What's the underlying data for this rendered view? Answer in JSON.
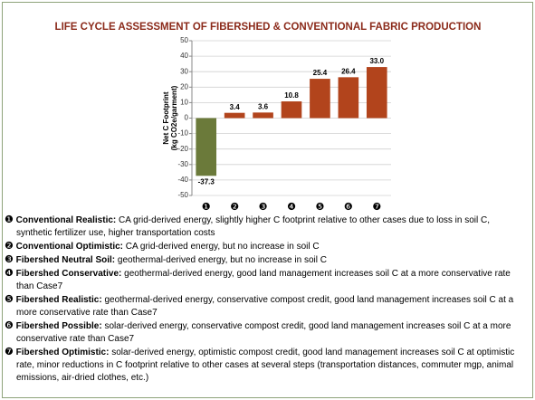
{
  "chart_data": {
    "type": "bar",
    "title": "LIFE CYCLE ASSESSMENT OF FIBERSHED & CONVENTIONAL FABRIC PRODUCTION",
    "y_label": [
      "Net C Footprint",
      "(kg CO2e/garment)"
    ],
    "categories": [
      "❶",
      "❷",
      "❸",
      "❹",
      "❺",
      "❻",
      "❼"
    ],
    "values": [
      -37.3,
      3.4,
      3.6,
      10.8,
      25.4,
      26.4,
      33.0
    ],
    "value_labels": [
      "-37.3",
      "3.4",
      "3.6",
      "10.8",
      "25.4",
      "26.4",
      "33.0"
    ],
    "colors": [
      "#6b7a3a",
      "#b2441c",
      "#b2441c",
      "#b2441c",
      "#b2441c",
      "#b2441c",
      "#b2441c"
    ],
    "ylim": [
      -50,
      50
    ],
    "yticks": [
      -50,
      -40,
      -30,
      -20,
      -10,
      0,
      10,
      20,
      30,
      40,
      50
    ],
    "grid": true
  },
  "notes": [
    {
      "name": "Conventional Realistic:",
      "text": "CA grid-derived energy, slightly higher C footprint relative to other cases due to loss in soil C, synthetic fertilizer use, higher transportation costs"
    },
    {
      "name": "Conventional Optimistic:",
      "text": "CA grid-derived energy, but no increase in soil C"
    },
    {
      "name": "Fibershed Neutral Soil:",
      "text": "geothermal-derived energy, but no increase in soil C"
    },
    {
      "name": "Fibershed Conservative:",
      "text": "geothermal-derived energy, good land management increases soil C at a more conservative rate than Case7"
    },
    {
      "name": "Fibershed Realistic:",
      "text": "geothermal-derived energy, conservative compost credit, good land management increases soil C at a more conservative rate than Case7"
    },
    {
      "name": "Fibershed Possible:",
      "text": "solar-derived energy, conservative compost credit, good land management increases soil C at a more conservative rate than Case7"
    },
    {
      "name": "Fibershed Optimistic:",
      "text": "solar-derived energy, optimistic compost credit, good land management increases soil C at optimistic rate, minor reductions in C footprint relative to other cases at several steps (transportation distances, commuter mgp, animal emissions, air-dried clothes, etc.)"
    }
  ]
}
